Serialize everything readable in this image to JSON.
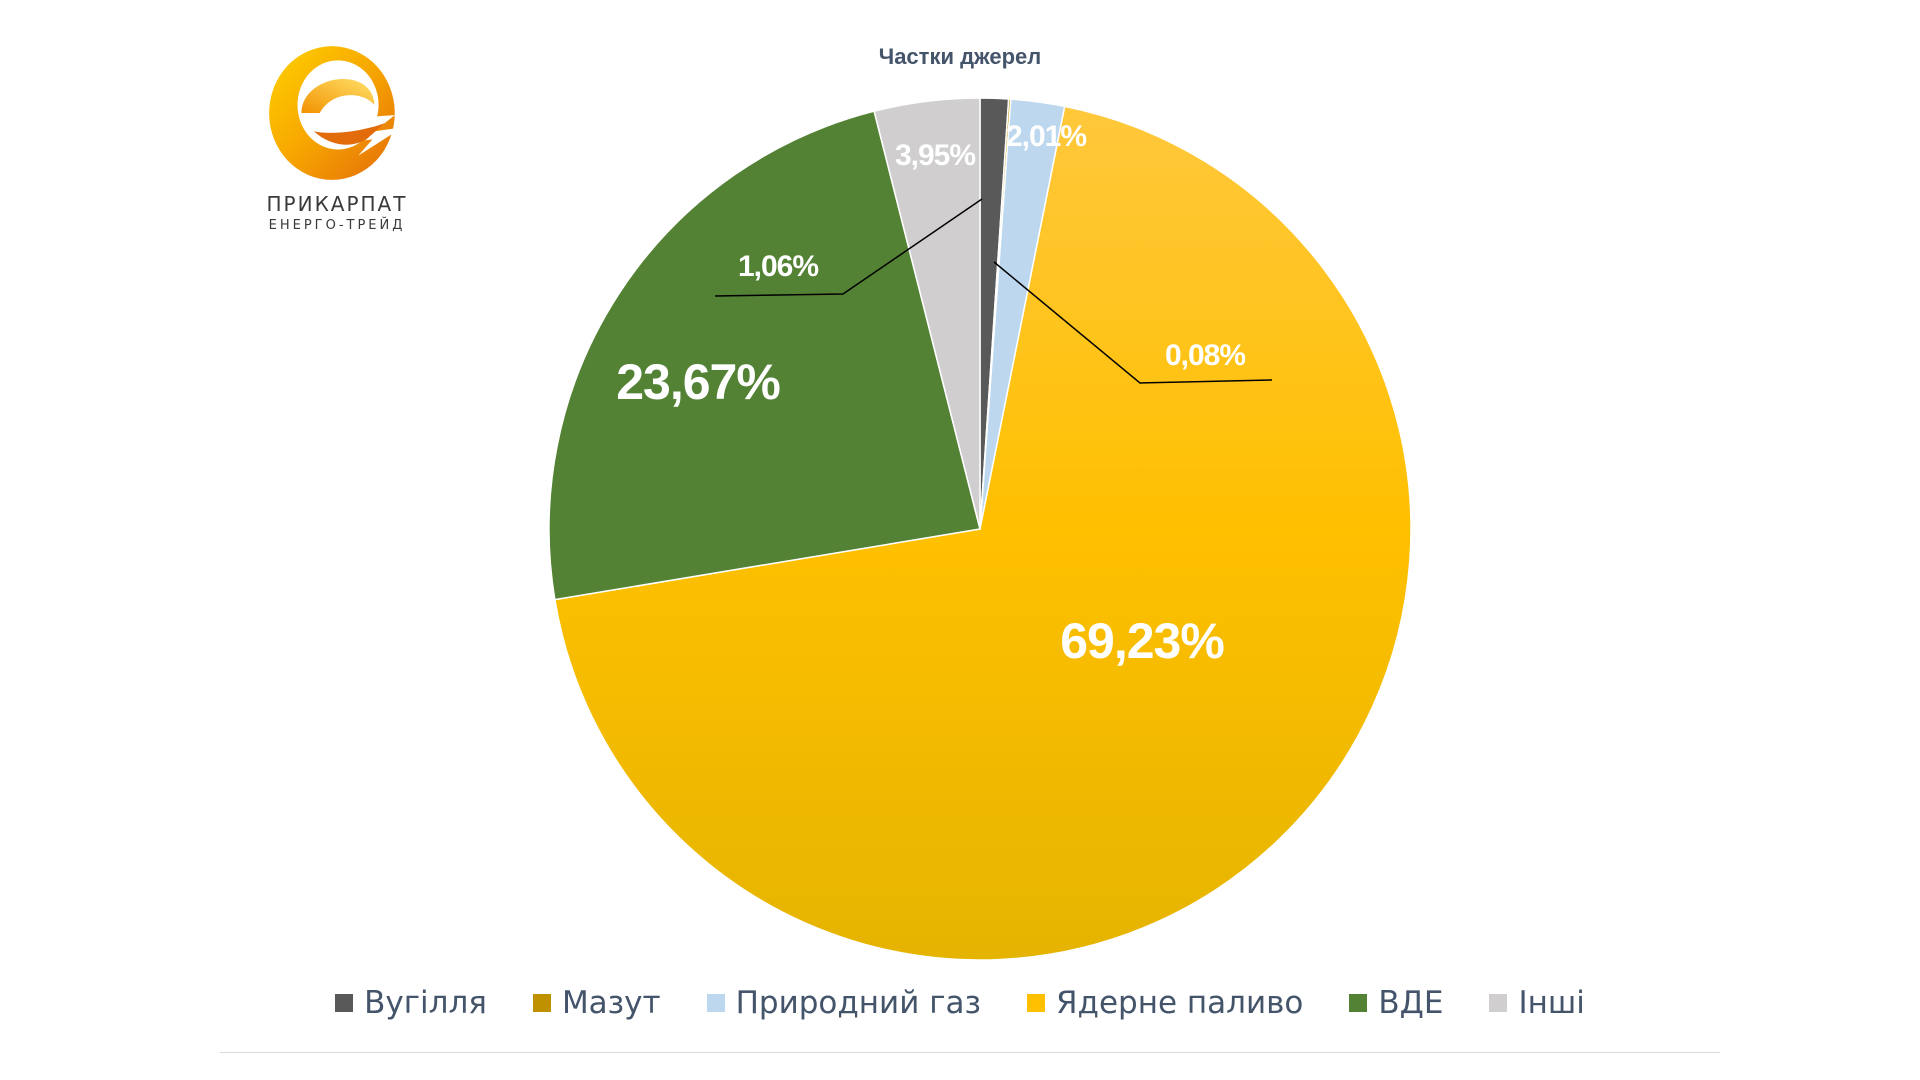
{
  "logo": {
    "line1": "ПРИКАРПАТ",
    "line2": "ЕНЕРГО-ТРЕЙД",
    "icon": "energy-e-logo-icon",
    "colors": [
      "#f7a600",
      "#e36c0a",
      "#ffd200"
    ]
  },
  "chart_data": {
    "type": "pie",
    "title": "Частки джерел",
    "legend_position": "bottom",
    "start_angle_deg": 0,
    "direction": "clockwise",
    "slices": [
      {
        "name": "Вугілля",
        "value": 1.06,
        "label": "1,06%",
        "color": "#595959",
        "label_style": "leader"
      },
      {
        "name": "Мазут",
        "value": 0.08,
        "label": "0,08%",
        "color": "#bf9000",
        "label_style": "leader"
      },
      {
        "name": "Природний газ",
        "value": 2.01,
        "label": "2,01%",
        "color": "#bdd7ee",
        "label_style": "inside"
      },
      {
        "name": "Ядерне паливо",
        "value": 69.23,
        "label": "69,23%",
        "color": "#ffc000",
        "label_style": "inside"
      },
      {
        "name": "ВДЕ",
        "value": 23.67,
        "label": "23,67%",
        "color": "#548235",
        "label_style": "inside"
      },
      {
        "name": "Інші",
        "value": 3.95,
        "label": "3,95%",
        "color": "#d0cece",
        "label_style": "inside"
      }
    ]
  }
}
